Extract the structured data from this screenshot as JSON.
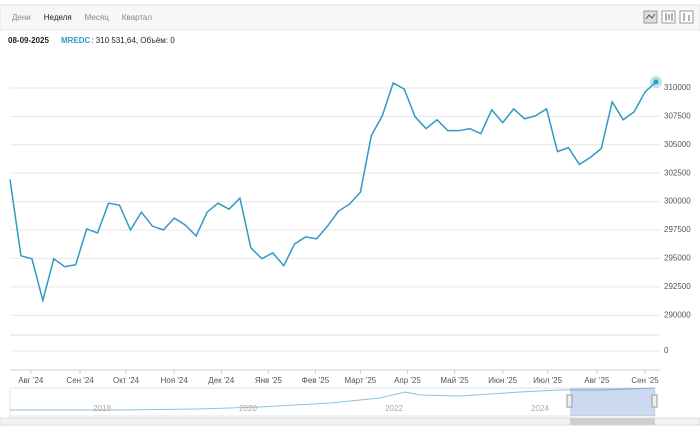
{
  "tabs": [
    "Дени",
    "Неделя",
    "Месяц",
    "Квартал"
  ],
  "active_tab": 1,
  "info": {
    "date": "08-09-2025",
    "symbol": "MREDC",
    "text": ": 310 531,64, Объём: 0"
  },
  "chart_data": {
    "type": "line",
    "series": [
      {
        "name": "MREDC",
        "color": "#2f9ac4",
        "values": [
          301950,
          295230,
          294970,
          291300,
          294970,
          294270,
          294440,
          297590,
          297240,
          299860,
          299690,
          297500,
          299070,
          297850,
          297500,
          298550,
          297940,
          296980,
          299070,
          299860,
          299330,
          300300,
          295930,
          294970,
          295490,
          294360,
          296280,
          296890,
          296720,
          297850,
          299160,
          299770,
          300820,
          305800,
          307550,
          310440,
          309910,
          307460,
          306420,
          307200,
          306240,
          306240,
          306420,
          305980,
          308080,
          306940,
          308160,
          307290,
          307550,
          308160,
          304400,
          304750,
          303270,
          303880,
          304670,
          308780,
          307200,
          307900,
          309650,
          310531.64
        ]
      }
    ],
    "xlim": [
      0,
      59
    ],
    "xticks": [
      {
        "value": 1.9,
        "label": "Авг '24"
      },
      {
        "value": 6.4,
        "label": "Сен '24"
      },
      {
        "value": 10.6,
        "label": "Окт '24"
      },
      {
        "value": 15.0,
        "label": "Ноя '24"
      },
      {
        "value": 19.3,
        "label": "Дек '24"
      },
      {
        "value": 23.6,
        "label": "Янв '25"
      },
      {
        "value": 27.9,
        "label": "Фев '25"
      },
      {
        "value": 32.0,
        "label": "Март '25"
      },
      {
        "value": 36.3,
        "label": "Апр '25"
      },
      {
        "value": 40.6,
        "label": "Май '25"
      },
      {
        "value": 45.0,
        "label": "Июн '25"
      },
      {
        "value": 49.1,
        "label": "Июл '25"
      },
      {
        "value": 53.6,
        "label": "Авг '25"
      },
      {
        "value": 58.0,
        "label": "Сен '25"
      }
    ],
    "ylim": [
      288700,
      312900
    ],
    "yticks": [
      290000,
      292500,
      295000,
      297500,
      300000,
      302500,
      305000,
      307500,
      310000
    ],
    "volume_yticks": [
      0
    ],
    "grid": true,
    "navigator_labels": [
      "2018",
      "2020",
      "2022",
      "2024"
    ]
  }
}
